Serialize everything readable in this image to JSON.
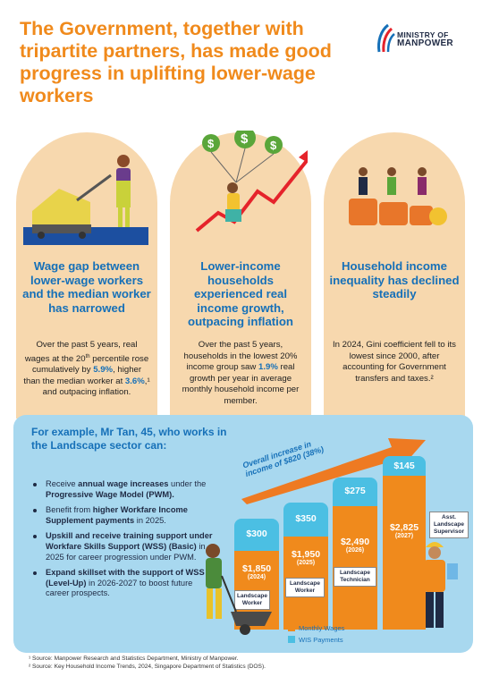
{
  "title": "The Government, together with tripartite partners, has made good progress in uplifting lower-wage workers",
  "logo": {
    "line1": "MINISTRY OF",
    "line2": "MANPOWER"
  },
  "columns": [
    {
      "heading": "Wage gap between lower-wage workers and the median worker has narrowed",
      "body_a": "Over the past 5 years, real wages at the 20",
      "body_sup": "th",
      "body_b": "percentile rose cumulatively by ",
      "hl1": "5.9%",
      "body_c": ", higher than the median worker at ",
      "hl2": "3.6%",
      "body_d": ",¹ and outpacing inflation."
    },
    {
      "heading": "Lower-income households experienced real income growth, outpacing inflation",
      "body_a": "Over the past 5 years, households in the lowest 20% income group saw ",
      "hl1": "1.9%",
      "body_b": " real growth per year in average monthly household income per member."
    },
    {
      "heading": "Household income inequality has declined steadily",
      "body": "In 2024, Gini coefficient fell to its lowest since 2000, after accounting for Government transfers and taxes.²"
    }
  ],
  "example": {
    "title": "For example, Mr Tan, 45, who works in the Landscape sector can:",
    "bullets": [
      {
        "a": "Receive ",
        "b": "annual wage increases",
        "c": " under the ",
        "d": "Progressive Wage Model (PWM).",
        "e": ""
      },
      {
        "a": "Benefit from ",
        "b": "higher Workfare Income Supplement payments",
        "c": " in 2025.",
        "d": "",
        "e": ""
      },
      {
        "a": "",
        "b": "Upskill and receive training support under Workfare Skills Support (WSS) (Basic)",
        "c": " in 2025 for career progression under PWM.",
        "d": "",
        "e": ""
      },
      {
        "a": "",
        "b": "Expand skillset with the support of WSS (Level-Up)",
        "c": " in 2026-2027 to boost future career prospects.",
        "d": "",
        "e": ""
      }
    ],
    "arrow_label_1": "Overall increase in",
    "arrow_label_2": "income of $820 (38%)",
    "bars": [
      {
        "wis": "$300",
        "wage": "$1,850",
        "year": "(2024)",
        "role": "Landscape Worker"
      },
      {
        "wis": "$350",
        "wage": "$1,950",
        "year": "(2025)",
        "role": "Landscape Worker"
      },
      {
        "wis": "$275",
        "wage": "$2,490",
        "year": "(2026)",
        "role": "Landscape Technician"
      },
      {
        "wis": "$145",
        "wage": "$2,825",
        "year": "(2027)",
        "role": "Asst. Landscape Supervisor"
      }
    ],
    "legend": {
      "wages": "Monthly Wages",
      "wis": "WIS Payments"
    }
  },
  "colors": {
    "orange": "#f08a1c",
    "blue": "#1670b8",
    "light_blue": "#4bbfe3",
    "peach": "#f7d8ae",
    "panel": "#a8d8ef"
  },
  "footnotes": [
    "¹ Source: Manpower Research and Statistics Department, Ministry of Manpower.",
    "² Source: Key Household Income Trends, 2024, Singapore Department of Statistics (DOS)."
  ]
}
